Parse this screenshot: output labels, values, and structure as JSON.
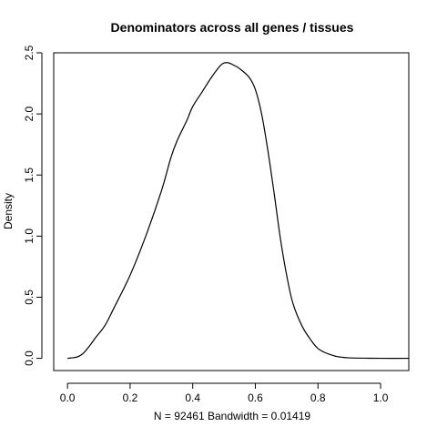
{
  "chart_data": {
    "type": "line",
    "title": "Denominators across all genes / tissues",
    "xlabel": "N = 92461   Bandwidth = 0.01419",
    "ylabel": "Density",
    "xlim": [
      -0.044,
      1.09
    ],
    "ylim": [
      -0.1,
      2.5
    ],
    "x_ticks": [
      "0.0",
      "0.2",
      "0.4",
      "0.6",
      "0.8",
      "1.0"
    ],
    "y_ticks": [
      "0.0",
      "0.5",
      "1.0",
      "1.5",
      "2.0",
      "2.5"
    ],
    "grid": false,
    "series": [
      {
        "x": [
          0.0,
          0.03,
          0.05,
          0.07,
          0.09,
          0.12,
          0.15,
          0.2,
          0.25,
          0.3,
          0.33,
          0.35,
          0.38,
          0.4,
          0.43,
          0.46,
          0.49,
          0.51,
          0.53,
          0.55,
          0.58,
          0.6,
          0.62,
          0.64,
          0.66,
          0.68,
          0.7,
          0.72,
          0.75,
          0.78,
          0.8,
          0.82,
          0.84,
          0.86,
          0.88,
          0.9,
          0.95,
          1.0,
          1.09
        ],
        "y": [
          0.0,
          0.01,
          0.04,
          0.1,
          0.17,
          0.27,
          0.42,
          0.68,
          1.0,
          1.37,
          1.64,
          1.78,
          1.94,
          2.06,
          2.18,
          2.3,
          2.4,
          2.42,
          2.4,
          2.37,
          2.3,
          2.2,
          2.0,
          1.7,
          1.35,
          0.98,
          0.68,
          0.45,
          0.26,
          0.14,
          0.08,
          0.05,
          0.03,
          0.015,
          0.008,
          0.004,
          0.001,
          0.0,
          0.0
        ]
      }
    ]
  }
}
